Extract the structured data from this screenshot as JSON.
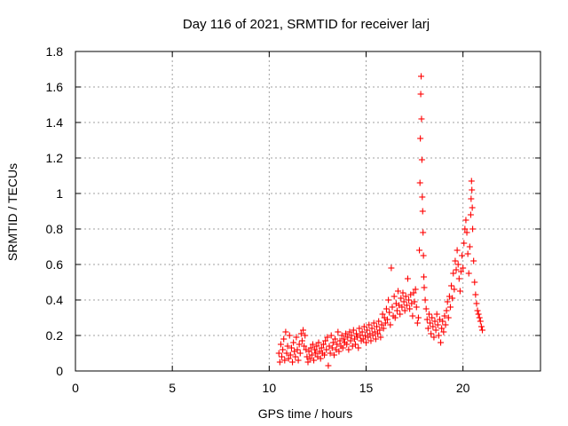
{
  "chart_data": {
    "type": "scatter",
    "title": "Day 116 of 2021, SRMTID for receiver larj",
    "xlabel": "GPS time / hours",
    "ylabel": "SRMTID / TECUs",
    "xlim": [
      0,
      24
    ],
    "ylim": [
      0,
      1.8
    ],
    "x_ticks": [
      0,
      5,
      10,
      15,
      20
    ],
    "x_tick_labels": [
      "0",
      "5",
      "10",
      "15",
      "20"
    ],
    "y_ticks": [
      0,
      0.2,
      0.4,
      0.6,
      0.8,
      1.0,
      1.2,
      1.4,
      1.6,
      1.8
    ],
    "y_tick_labels": [
      "0",
      "0.2",
      "0.4",
      "0.6",
      "0.8",
      "1",
      "1.2",
      "1.4",
      "1.6",
      "1.8"
    ],
    "grid": true,
    "marker": "+",
    "marker_color": "#ff0000",
    "series": [
      {
        "name": "SRMTID",
        "points": [
          [
            10.5,
            0.1
          ],
          [
            10.55,
            0.05
          ],
          [
            10.6,
            0.15
          ],
          [
            10.65,
            0.08
          ],
          [
            10.7,
            0.12
          ],
          [
            10.75,
            0.18
          ],
          [
            10.8,
            0.06
          ],
          [
            10.85,
            0.22
          ],
          [
            10.9,
            0.1
          ],
          [
            10.95,
            0.14
          ],
          [
            11.0,
            0.07
          ],
          [
            11.05,
            0.2
          ],
          [
            11.1,
            0.09
          ],
          [
            11.15,
            0.13
          ],
          [
            11.2,
            0.05
          ],
          [
            11.25,
            0.16
          ],
          [
            11.3,
            0.11
          ],
          [
            11.35,
            0.08
          ],
          [
            11.4,
            0.19
          ],
          [
            11.45,
            0.12
          ],
          [
            11.5,
            0.06
          ],
          [
            11.55,
            0.15
          ],
          [
            11.6,
            0.1
          ],
          [
            11.65,
            0.21
          ],
          [
            11.7,
            0.17
          ],
          [
            11.75,
            0.23
          ],
          [
            11.8,
            0.14
          ],
          [
            11.85,
            0.2
          ],
          [
            11.9,
            0.12
          ],
          [
            11.95,
            0.08
          ],
          [
            12.0,
            0.05
          ],
          [
            12.05,
            0.11
          ],
          [
            12.1,
            0.07
          ],
          [
            12.15,
            0.13
          ],
          [
            12.2,
            0.09
          ],
          [
            12.25,
            0.15
          ],
          [
            12.3,
            0.06
          ],
          [
            12.35,
            0.12
          ],
          [
            12.4,
            0.1
          ],
          [
            12.45,
            0.14
          ],
          [
            12.5,
            0.08
          ],
          [
            12.55,
            0.16
          ],
          [
            12.6,
            0.11
          ],
          [
            12.65,
            0.07
          ],
          [
            12.7,
            0.13
          ],
          [
            12.75,
            0.1
          ],
          [
            12.8,
            0.15
          ],
          [
            12.85,
            0.09
          ],
          [
            12.9,
            0.17
          ],
          [
            12.95,
            0.12
          ],
          [
            13.0,
            0.19
          ],
          [
            13.05,
            0.03
          ],
          [
            13.1,
            0.14
          ],
          [
            13.15,
            0.1
          ],
          [
            13.2,
            0.2
          ],
          [
            13.25,
            0.13
          ],
          [
            13.3,
            0.16
          ],
          [
            13.35,
            0.09
          ],
          [
            13.4,
            0.18
          ],
          [
            13.45,
            0.12
          ],
          [
            13.5,
            0.15
          ],
          [
            13.55,
            0.22
          ],
          [
            13.6,
            0.11
          ],
          [
            13.65,
            0.17
          ],
          [
            13.7,
            0.14
          ],
          [
            13.75,
            0.2
          ],
          [
            13.8,
            0.13
          ],
          [
            13.85,
            0.18
          ],
          [
            13.9,
            0.16
          ],
          [
            13.95,
            0.21
          ],
          [
            14.0,
            0.15
          ],
          [
            14.05,
            0.19
          ],
          [
            14.1,
            0.12
          ],
          [
            14.15,
            0.22
          ],
          [
            14.2,
            0.17
          ],
          [
            14.25,
            0.2
          ],
          [
            14.3,
            0.14
          ],
          [
            14.35,
            0.23
          ],
          [
            14.4,
            0.18
          ],
          [
            14.45,
            0.15
          ],
          [
            14.5,
            0.21
          ],
          [
            14.55,
            0.19
          ],
          [
            14.6,
            0.13
          ],
          [
            14.65,
            0.24
          ],
          [
            14.7,
            0.2
          ],
          [
            14.75,
            0.17
          ],
          [
            14.8,
            0.22
          ],
          [
            14.85,
            0.18
          ],
          [
            14.9,
            0.25
          ],
          [
            14.95,
            0.2
          ],
          [
            15.0,
            0.16
          ],
          [
            15.05,
            0.23
          ],
          [
            15.1,
            0.19
          ],
          [
            15.15,
            0.26
          ],
          [
            15.2,
            0.21
          ],
          [
            15.25,
            0.17
          ],
          [
            15.3,
            0.24
          ],
          [
            15.35,
            0.2
          ],
          [
            15.4,
            0.27
          ],
          [
            15.45,
            0.22
          ],
          [
            15.5,
            0.18
          ],
          [
            15.55,
            0.25
          ],
          [
            15.6,
            0.21
          ],
          [
            15.65,
            0.28
          ],
          [
            15.7,
            0.23
          ],
          [
            15.75,
            0.19
          ],
          [
            15.8,
            0.26
          ],
          [
            15.85,
            0.32
          ],
          [
            15.9,
            0.24
          ],
          [
            15.95,
            0.3
          ],
          [
            16.0,
            0.27
          ],
          [
            16.05,
            0.35
          ],
          [
            16.1,
            0.29
          ],
          [
            16.15,
            0.4
          ],
          [
            16.2,
            0.33
          ],
          [
            16.25,
            0.26
          ],
          [
            16.3,
            0.58
          ],
          [
            16.35,
            0.36
          ],
          [
            16.4,
            0.31
          ],
          [
            16.45,
            0.42
          ],
          [
            16.5,
            0.3
          ],
          [
            16.55,
            0.38
          ],
          [
            16.6,
            0.34
          ],
          [
            16.65,
            0.45
          ],
          [
            16.7,
            0.37
          ],
          [
            16.75,
            0.32
          ],
          [
            16.8,
            0.41
          ],
          [
            16.85,
            0.36
          ],
          [
            16.9,
            0.44
          ],
          [
            16.95,
            0.39
          ],
          [
            17.0,
            0.34
          ],
          [
            17.05,
            0.42
          ],
          [
            17.1,
            0.37
          ],
          [
            17.15,
            0.52
          ],
          [
            17.2,
            0.4
          ],
          [
            17.25,
            0.35
          ],
          [
            17.3,
            0.43
          ],
          [
            17.35,
            0.38
          ],
          [
            17.4,
            0.31
          ],
          [
            17.45,
            0.44
          ],
          [
            17.5,
            0.39
          ],
          [
            17.55,
            0.46
          ],
          [
            17.6,
            0.36
          ],
          [
            17.65,
            0.27
          ],
          [
            17.7,
            0.3
          ],
          [
            17.75,
            0.68
          ],
          [
            17.78,
            1.06
          ],
          [
            17.8,
            1.31
          ],
          [
            17.82,
            1.56
          ],
          [
            17.84,
            1.66
          ],
          [
            17.86,
            1.42
          ],
          [
            17.88,
            1.19
          ],
          [
            17.9,
            0.98
          ],
          [
            17.92,
            0.9
          ],
          [
            17.94,
            0.78
          ],
          [
            17.96,
            0.65
          ],
          [
            17.98,
            0.53
          ],
          [
            18.0,
            0.47
          ],
          [
            18.05,
            0.4
          ],
          [
            18.1,
            0.35
          ],
          [
            18.15,
            0.29
          ],
          [
            18.2,
            0.24
          ],
          [
            18.25,
            0.32
          ],
          [
            18.3,
            0.27
          ],
          [
            18.35,
            0.21
          ],
          [
            18.4,
            0.3
          ],
          [
            18.45,
            0.25
          ],
          [
            18.5,
            0.19
          ],
          [
            18.55,
            0.28
          ],
          [
            18.6,
            0.23
          ],
          [
            18.65,
            0.32
          ],
          [
            18.7,
            0.26
          ],
          [
            18.75,
            0.2
          ],
          [
            18.8,
            0.29
          ],
          [
            18.85,
            0.16
          ],
          [
            18.9,
            0.24
          ],
          [
            18.95,
            0.28
          ],
          [
            19.0,
            0.22
          ],
          [
            19.05,
            0.31
          ],
          [
            19.1,
            0.26
          ],
          [
            19.15,
            0.34
          ],
          [
            19.2,
            0.39
          ],
          [
            19.25,
            0.3
          ],
          [
            19.3,
            0.42
          ],
          [
            19.35,
            0.36
          ],
          [
            19.4,
            0.48
          ],
          [
            19.45,
            0.41
          ],
          [
            19.5,
            0.55
          ],
          [
            19.55,
            0.46
          ],
          [
            19.6,
            0.62
          ],
          [
            19.65,
            0.57
          ],
          [
            19.7,
            0.68
          ],
          [
            19.75,
            0.6
          ],
          [
            19.8,
            0.52
          ],
          [
            19.85,
            0.45
          ],
          [
            19.9,
            0.56
          ],
          [
            19.95,
            0.65
          ],
          [
            20.0,
            0.58
          ],
          [
            20.05,
            0.72
          ],
          [
            20.1,
            0.8
          ],
          [
            20.15,
            0.85
          ],
          [
            20.2,
            0.78
          ],
          [
            20.25,
            0.66
          ],
          [
            20.3,
            0.55
          ],
          [
            20.35,
            0.7
          ],
          [
            20.4,
            0.88
          ],
          [
            20.42,
            0.97
          ],
          [
            20.44,
            1.07
          ],
          [
            20.46,
            1.02
          ],
          [
            20.48,
            0.92
          ],
          [
            20.5,
            0.8
          ],
          [
            20.55,
            0.62
          ],
          [
            20.6,
            0.5
          ],
          [
            20.65,
            0.43
          ],
          [
            20.7,
            0.38
          ],
          [
            20.75,
            0.34
          ],
          [
            20.8,
            0.32
          ],
          [
            20.85,
            0.3
          ],
          [
            20.9,
            0.28
          ],
          [
            20.95,
            0.25
          ],
          [
            21.0,
            0.23
          ]
        ]
      }
    ]
  }
}
